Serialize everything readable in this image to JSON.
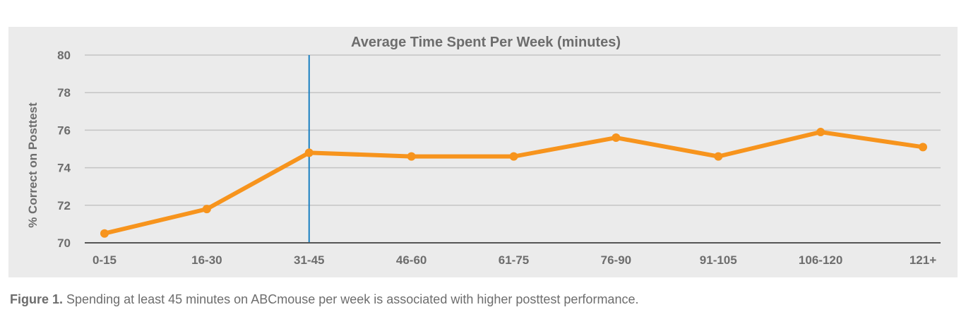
{
  "chart_data": {
    "type": "line",
    "title": "Average Time Spent Per Week (minutes)",
    "xlabel": "",
    "ylabel": "% Correct on Posttest",
    "categories": [
      "0-15",
      "16-30",
      "31-45",
      "46-60",
      "61-75",
      "76-90",
      "91-105",
      "106-120",
      "121+"
    ],
    "series": [
      {
        "values": [
          70.5,
          71.8,
          74.8,
          74.6,
          74.6,
          75.6,
          74.6,
          75.9,
          75.1
        ]
      }
    ],
    "ylim": [
      70,
      80
    ],
    "yticks": [
      70,
      72,
      74,
      76,
      78,
      80
    ],
    "grid": true,
    "reference_line_category": "31-45",
    "colors": {
      "line": "#f7941d",
      "reference": "#1a7fc1",
      "grid": "#c4c4c4",
      "axis": "#555555",
      "background": "#ebebeb"
    }
  },
  "caption": {
    "label": "Figure 1.",
    "text": " Spending at least 45 minutes on ABCmouse per week is associated with higher posttest performance."
  }
}
